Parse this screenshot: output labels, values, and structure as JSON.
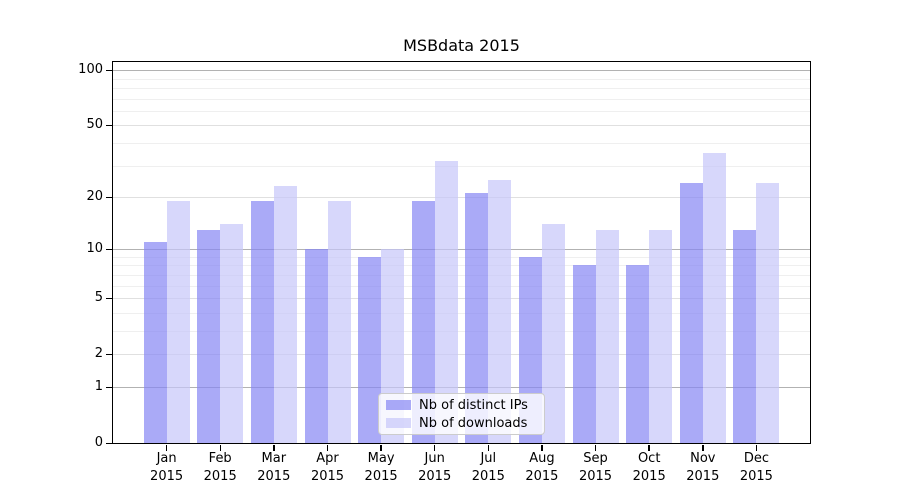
{
  "chart_data": {
    "type": "bar",
    "title": "MSBdata 2015",
    "x_categories": [
      {
        "month": "Jan",
        "year": "2015"
      },
      {
        "month": "Feb",
        "year": "2015"
      },
      {
        "month": "Mar",
        "year": "2015"
      },
      {
        "month": "Apr",
        "year": "2015"
      },
      {
        "month": "May",
        "year": "2015"
      },
      {
        "month": "Jun",
        "year": "2015"
      },
      {
        "month": "Jul",
        "year": "2015"
      },
      {
        "month": "Aug",
        "year": "2015"
      },
      {
        "month": "Sep",
        "year": "2015"
      },
      {
        "month": "Oct",
        "year": "2015"
      },
      {
        "month": "Nov",
        "year": "2015"
      },
      {
        "month": "Dec",
        "year": "2015"
      }
    ],
    "series": [
      {
        "name": "Nb of distinct IPs",
        "color": "rgba(134,134,243,0.7)",
        "values": [
          11,
          13,
          19,
          10,
          9,
          19,
          21,
          9,
          8,
          8,
          24,
          13
        ]
      },
      {
        "name": "Nb of downloads",
        "color": "rgba(198,198,249,0.7)",
        "values": [
          19,
          14,
          23,
          19,
          10,
          32,
          25,
          14,
          13,
          13,
          35,
          24
        ]
      }
    ],
    "y_scale": "log1p",
    "y_ticks": [
      "0",
      "1",
      "2",
      "5",
      "10",
      "20",
      "50",
      "100"
    ],
    "y_tick_values": [
      0,
      1,
      2,
      5,
      10,
      20,
      50,
      100
    ],
    "ylim": [
      0,
      110.6
    ],
    "grid_on": true,
    "grid": [
      {
        "level": "decade",
        "color": "#b2b2b2",
        "values": [
          1,
          10,
          100
        ]
      },
      {
        "level": "labeled",
        "color": "#e0e0e0",
        "values": [
          2,
          5,
          20,
          50
        ]
      },
      {
        "level": "minor",
        "color": "#efefef",
        "values": [
          3,
          4,
          6,
          7,
          8,
          9,
          30,
          40,
          60,
          70,
          80,
          90
        ]
      }
    ],
    "legend": {
      "position": "lower center",
      "entries": [
        "Nb of distinct IPs",
        "Nb of downloads"
      ]
    }
  }
}
